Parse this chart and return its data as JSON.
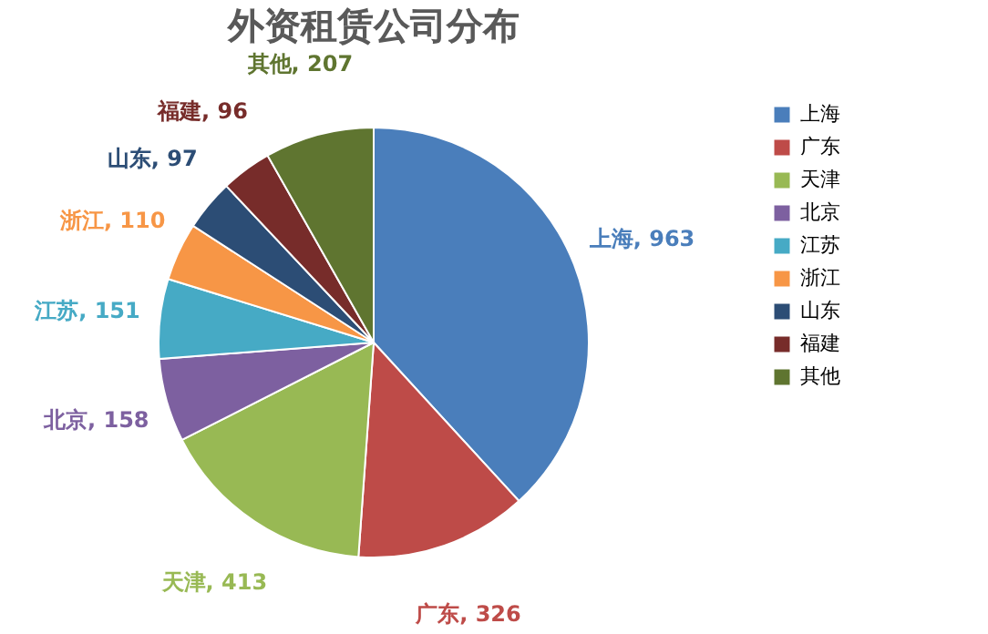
{
  "chart_data": {
    "type": "pie",
    "title": "外资租赁公司分布",
    "categories": [
      "上海",
      "广东",
      "天津",
      "北京",
      "江苏",
      "浙江",
      "山东",
      "福建",
      "其他"
    ],
    "values": [
      963,
      326,
      413,
      158,
      151,
      110,
      97,
      96,
      207
    ],
    "colors": [
      "#4a7ebb",
      "#be4b48",
      "#98b954",
      "#7d60a0",
      "#46aac5",
      "#f79646",
      "#2c4d75",
      "#772c2a",
      "#5f7530"
    ],
    "value_labels": [
      "上海, 963",
      "广东, 326",
      "天津, 413",
      "北京, 158",
      "江苏, 151",
      "浙江, 110",
      "山东, 97",
      "福建, 96",
      "其他, 207"
    ],
    "legend": "right"
  }
}
